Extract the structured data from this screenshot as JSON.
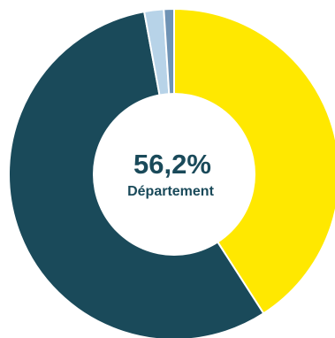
{
  "chart_data": {
    "type": "pie",
    "style": "donut",
    "start": "top, clockwise",
    "slices": [
      {
        "value": 40.9,
        "color": "#ffe800"
      },
      {
        "value": 56.2,
        "color": "#1a4a5a"
      },
      {
        "value": 1.9,
        "color": "#b7d3e8"
      },
      {
        "value": 1.0,
        "color": "#6f93b5"
      }
    ],
    "center_value": "56,2%",
    "center_label": "Département"
  }
}
